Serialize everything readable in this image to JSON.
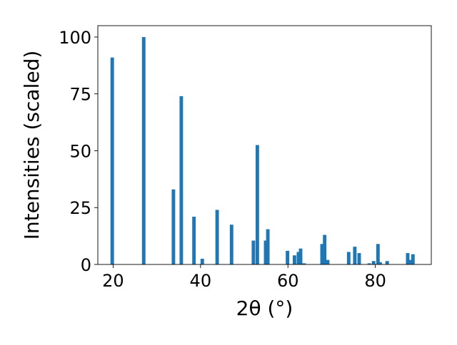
{
  "chart_data": {
    "type": "bar",
    "title": "",
    "xlabel": "2θ (°)",
    "ylabel": "Intensities (scaled)",
    "xlim": [
      16.5,
      92.8
    ],
    "ylim": [
      0,
      105
    ],
    "xticks": [
      20,
      40,
      60,
      80
    ],
    "yticks": [
      0,
      25,
      50,
      75,
      100
    ],
    "grid": false,
    "bar_color": "#1f77b4",
    "bar_width": 0.8,
    "x": [
      19.8,
      27.0,
      33.8,
      35.6,
      38.5,
      40.4,
      43.8,
      47.1,
      52.1,
      53.0,
      54.9,
      55.4,
      59.9,
      61.5,
      62.4,
      62.9,
      63.7,
      67.8,
      68.4,
      69.1,
      73.9,
      75.3,
      76.3,
      78.6,
      79.6,
      80.6,
      81.1,
      82.7,
      87.4,
      87.9,
      88.6
    ],
    "values": [
      91,
      100,
      33,
      74,
      21,
      2.5,
      24,
      17.5,
      10.5,
      52.5,
      10.5,
      15.5,
      6,
      4,
      5.5,
      7,
      0.5,
      9,
      13,
      2,
      5.5,
      7.8,
      5,
      0.5,
      1.5,
      9,
      1,
      1.5,
      5,
      2,
      4.5
    ]
  }
}
